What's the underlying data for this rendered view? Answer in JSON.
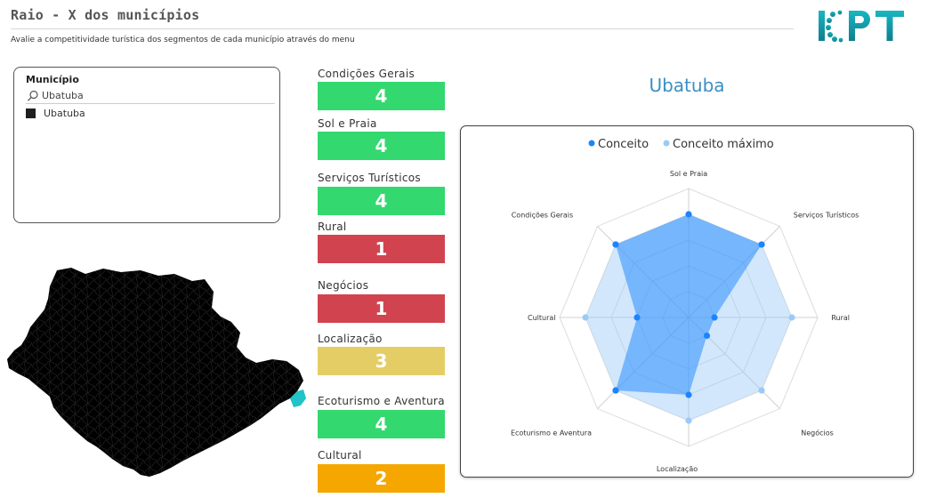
{
  "header": {
    "title": "Raio - X dos municípios",
    "subtitle": "Avalie a competitividade turística dos segmentos de cada município através do menu",
    "logo_text": "ICPT"
  },
  "slicer": {
    "title": "Município",
    "search_value": "Ubatuba",
    "selected_item": "Ubatuba"
  },
  "colors": {
    "green": "#33d86f",
    "red": "#d1444f",
    "yellow": "#e5cd66",
    "orange": "#f5a700",
    "conceito": "#1a85ff",
    "conceito_maximo": "#9ccaf7",
    "title_blue": "#3b8fc5",
    "logo_teal": "#1aa7b3"
  },
  "cards": [
    {
      "label": "Condições Gerais",
      "value": "4",
      "color": "green"
    },
    {
      "label": "Sol e Praia",
      "value": "4",
      "color": "green"
    },
    {
      "label": "Serviços Turísticos",
      "value": "4",
      "color": "green"
    },
    {
      "label": "Rural",
      "value": "1",
      "color": "red"
    },
    {
      "label": "Negócios",
      "value": "1",
      "color": "red"
    },
    {
      "label": "Localização",
      "value": "3",
      "color": "yellow"
    },
    {
      "label": "Ecoturismo e Aventura",
      "value": "4",
      "color": "green"
    },
    {
      "label": "Cultural",
      "value": "2",
      "color": "orange"
    }
  ],
  "municipality_title": "Ubatuba",
  "chart_data": {
    "type": "radar",
    "axes": [
      "Sol e Praia",
      "Serviços Turísticos",
      "Rural",
      "Negócios",
      "Localização",
      "Ecoturismo e Aventura",
      "Cultural",
      "Condições Gerais"
    ],
    "series": [
      {
        "name": "Conceito",
        "values": [
          4,
          4,
          1,
          1,
          3,
          4,
          2,
          4
        ]
      },
      {
        "name": "Conceito máximo",
        "values": [
          4,
          4,
          4,
          4,
          4,
          4,
          4,
          4
        ]
      }
    ],
    "rmax": 5,
    "legend": "top"
  }
}
